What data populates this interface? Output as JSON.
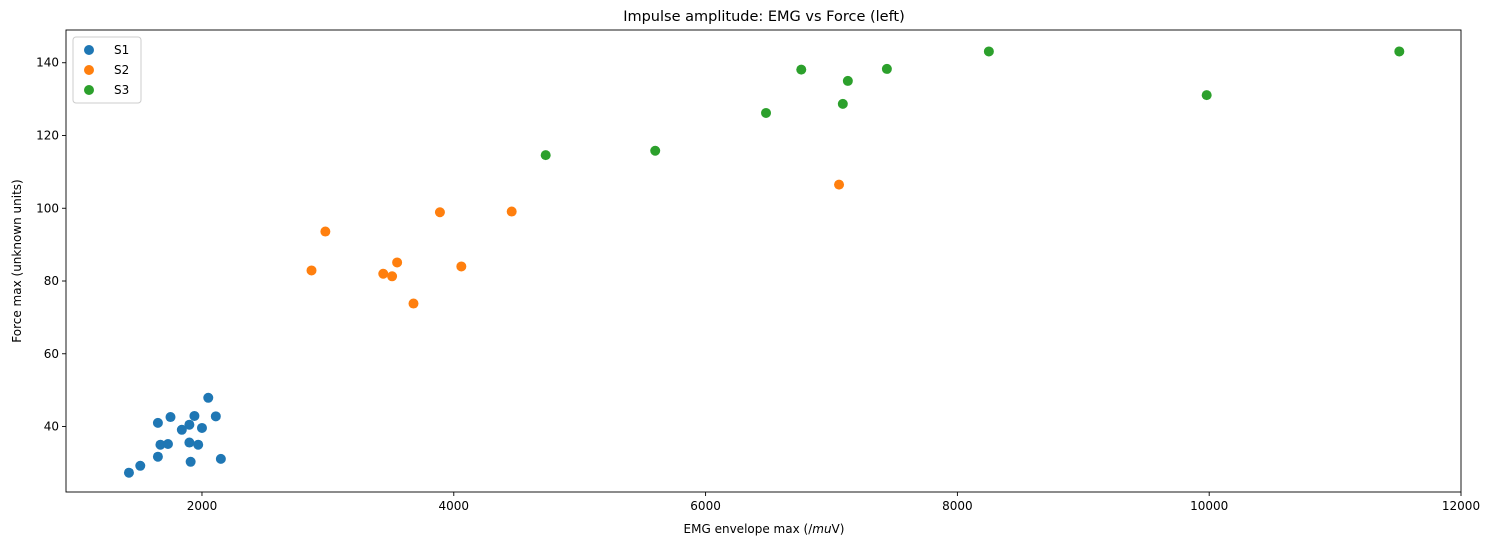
{
  "chart_data": {
    "type": "scatter",
    "title": "Impulse amplitude: EMG vs Force (left)",
    "xlabel_prefix": "EMG envelope max (/",
    "xlabel_italic": "mu",
    "xlabel_suffix": "V)",
    "ylabel": "Force max (unknown units)",
    "xlim": [
      920,
      12000
    ],
    "ylim": [
      22,
      149
    ],
    "xticks": [
      2000,
      4000,
      6000,
      8000,
      10000,
      12000
    ],
    "yticks": [
      40,
      60,
      80,
      100,
      120,
      140
    ],
    "grid": false,
    "legend_position": "top-left",
    "series": [
      {
        "name": "S1",
        "color": "#1f77b4",
        "points": [
          [
            1420,
            27.3
          ],
          [
            1510,
            29.2
          ],
          [
            1650,
            31.7
          ],
          [
            1650,
            41.0
          ],
          [
            1670,
            35.0
          ],
          [
            1730,
            35.2
          ],
          [
            1750,
            42.6
          ],
          [
            1840,
            39.1
          ],
          [
            1900,
            35.6
          ],
          [
            1900,
            40.5
          ],
          [
            1910,
            30.3
          ],
          [
            1940,
            42.9
          ],
          [
            1970,
            35.0
          ],
          [
            2000,
            39.6
          ],
          [
            2050,
            47.9
          ],
          [
            2110,
            42.8
          ],
          [
            2150,
            31.1
          ]
        ]
      },
      {
        "name": "S2",
        "color": "#ff7f0e",
        "points": [
          [
            2870,
            82.9
          ],
          [
            2980,
            93.6
          ],
          [
            3440,
            82.0
          ],
          [
            3510,
            81.3
          ],
          [
            3550,
            85.1
          ],
          [
            3680,
            73.8
          ],
          [
            3890,
            98.9
          ],
          [
            4060,
            84.0
          ],
          [
            4460,
            99.1
          ],
          [
            7060,
            106.5
          ]
        ]
      },
      {
        "name": "S3",
        "color": "#2ca02c",
        "points": [
          [
            4730,
            114.6
          ],
          [
            5600,
            115.8
          ],
          [
            6480,
            126.2
          ],
          [
            6760,
            138.1
          ],
          [
            7090,
            128.7
          ],
          [
            7130,
            135.0
          ],
          [
            7440,
            138.3
          ],
          [
            8250,
            143.1
          ],
          [
            9980,
            131.1
          ],
          [
            11510,
            143.1
          ]
        ]
      }
    ]
  }
}
